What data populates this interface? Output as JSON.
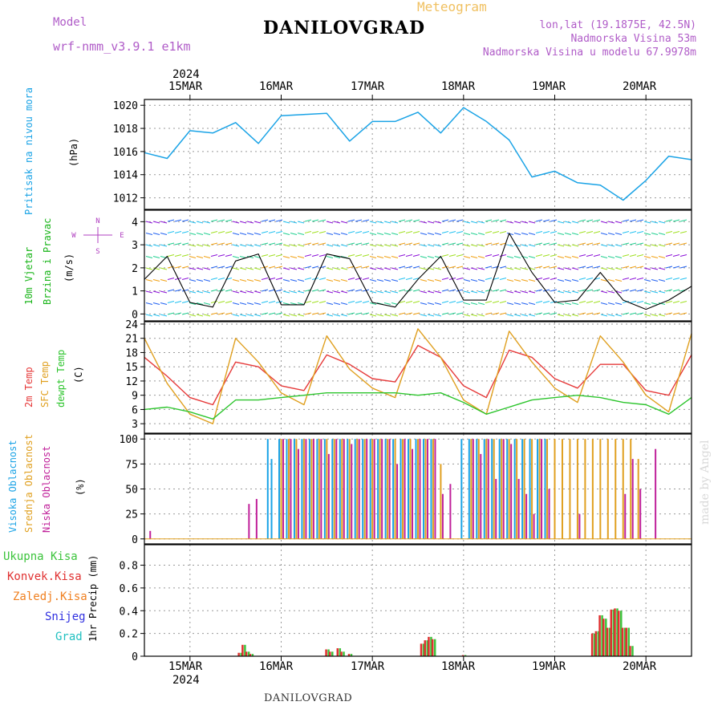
{
  "header": {
    "model_label": "Model",
    "model_name": "wrf-nmm_v3.9.1 e1km",
    "station": "DANILOVGRAD",
    "chart_kind": "Meteogram",
    "coords": "lon,lat (19.1875E, 42.5N)",
    "elevation": "Nadmorska Visina 53m",
    "model_elevation": "Nadmorska Visina u modelu 67.9978m",
    "footer_station": "DANILOVGRAD",
    "watermark": "made by Angel"
  },
  "colors": {
    "pressure": "#1aa3e6",
    "wind_title": "#1ab51a",
    "wind_unit": "#000000",
    "compass": "#b040c0",
    "temp2m": "#e63a3a",
    "sfc": "#e0a020",
    "dewpt": "#2ec52e",
    "cl_high": "#1aa3e6",
    "cl_mid": "#e0a020",
    "cl_low": "#c0209a",
    "precip_total": "#3cc43c",
    "precip_conv": "#e03030",
    "precip_frz": "#f08020",
    "precip_snow": "#3030e0",
    "precip_grad": "#20c0c0",
    "header_purple": "#b05cc8",
    "meteogram": "#f0c060"
  },
  "time_axis": {
    "year": "2024",
    "days": [
      "15MAR",
      "16MAR",
      "17MAR",
      "18MAR",
      "19MAR",
      "20MAR"
    ],
    "start": "2024-03-14T12:00",
    "end": "2024-03-20T12:00"
  },
  "chart_data": [
    {
      "type": "line",
      "panel": "pressure",
      "ylabel": "Pritisak na nivou mora",
      "unit": "(hPa)",
      "ylim": [
        1011,
        1020.5
      ],
      "yticks": [
        "1012",
        "1014",
        "1016",
        "1018",
        "1020"
      ],
      "series": [
        {
          "name": "Pritisak na nivou mora",
          "x": [
            "2024-03-14T12:00",
            "2024-03-14T18:00",
            "2024-03-15T00:00",
            "2024-03-15T06:00",
            "2024-03-15T12:00",
            "2024-03-15T18:00",
            "2024-03-16T00:00",
            "2024-03-16T06:00",
            "2024-03-16T12:00",
            "2024-03-16T18:00",
            "2024-03-17T00:00",
            "2024-03-17T06:00",
            "2024-03-17T12:00",
            "2024-03-17T18:00",
            "2024-03-18T00:00",
            "2024-03-18T06:00",
            "2024-03-18T12:00",
            "2024-03-18T18:00",
            "2024-03-19T00:00",
            "2024-03-19T06:00",
            "2024-03-19T12:00",
            "2024-03-19T18:00",
            "2024-03-20T00:00",
            "2024-03-20T06:00",
            "2024-03-20T12:00"
          ],
          "values": [
            1015.9,
            1015.4,
            1017.8,
            1017.6,
            1018.5,
            1016.7,
            1019.1,
            1019.2,
            1019.3,
            1016.9,
            1018.6,
            1018.6,
            1019.4,
            1017.6,
            1019.8,
            1018.6,
            1017.0,
            1013.8,
            1014.3,
            1013.3,
            1013.1,
            1011.8,
            1013.5,
            1015.6,
            1015.3
          ]
        }
      ]
    },
    {
      "type": "line",
      "panel": "wind",
      "ylabel": "10m Vjetar Brzina i Pravac",
      "unit": "(m/s)",
      "compass": [
        "N",
        "W",
        "E",
        "S"
      ],
      "ylim": [
        -0.3,
        4.5
      ],
      "yticks": [
        "0",
        "1",
        "2",
        "3",
        "4"
      ],
      "series": [
        {
          "name": "Brzina",
          "x": [
            "2024-03-14T12:00",
            "2024-03-14T18:00",
            "2024-03-15T00:00",
            "2024-03-15T06:00",
            "2024-03-15T12:00",
            "2024-03-15T18:00",
            "2024-03-16T00:00",
            "2024-03-16T06:00",
            "2024-03-16T12:00",
            "2024-03-16T18:00",
            "2024-03-17T00:00",
            "2024-03-17T06:00",
            "2024-03-17T12:00",
            "2024-03-17T18:00",
            "2024-03-18T00:00",
            "2024-03-18T06:00",
            "2024-03-18T12:00",
            "2024-03-18T18:00",
            "2024-03-19T00:00",
            "2024-03-19T06:00",
            "2024-03-19T12:00",
            "2024-03-19T18:00",
            "2024-03-20T00:00",
            "2024-03-20T06:00",
            "2024-03-20T12:00"
          ],
          "values": [
            1.5,
            2.5,
            0.5,
            0.3,
            2.3,
            2.6,
            0.4,
            0.4,
            2.6,
            2.4,
            0.5,
            0.3,
            1.5,
            2.5,
            0.6,
            0.6,
            3.5,
            1.8,
            0.5,
            0.6,
            1.8,
            0.6,
            0.2,
            0.6,
            1.2
          ]
        }
      ]
    },
    {
      "type": "line",
      "panel": "temperature",
      "ylabel": "2m Temp / SFC Temp / dewpt Temp",
      "unit": "(C)",
      "ylim": [
        1,
        24.5
      ],
      "yticks": [
        "3",
        "6",
        "9",
        "12",
        "15",
        "18",
        "21",
        "24"
      ],
      "series": [
        {
          "name": "2m Temp",
          "x": [
            "2024-03-14T12:00",
            "2024-03-14T18:00",
            "2024-03-15T00:00",
            "2024-03-15T06:00",
            "2024-03-15T12:00",
            "2024-03-15T18:00",
            "2024-03-16T00:00",
            "2024-03-16T06:00",
            "2024-03-16T12:00",
            "2024-03-16T18:00",
            "2024-03-17T00:00",
            "2024-03-17T06:00",
            "2024-03-17T12:00",
            "2024-03-17T18:00",
            "2024-03-18T00:00",
            "2024-03-18T06:00",
            "2024-03-18T12:00",
            "2024-03-18T18:00",
            "2024-03-19T00:00",
            "2024-03-19T06:00",
            "2024-03-19T12:00",
            "2024-03-19T18:00",
            "2024-03-20T00:00",
            "2024-03-20T06:00",
            "2024-03-20T12:00"
          ],
          "values": [
            17,
            13,
            8.5,
            7,
            16,
            15,
            11,
            10,
            17.5,
            15.5,
            12.5,
            11.8,
            19.5,
            17,
            11,
            8.5,
            18.5,
            17,
            12.5,
            10.5,
            15.5,
            15.5,
            10,
            9,
            17.5
          ]
        },
        {
          "name": "SFC Temp",
          "x": [
            "2024-03-14T12:00",
            "2024-03-14T18:00",
            "2024-03-15T00:00",
            "2024-03-15T06:00",
            "2024-03-15T12:00",
            "2024-03-15T18:00",
            "2024-03-16T00:00",
            "2024-03-16T06:00",
            "2024-03-16T12:00",
            "2024-03-16T18:00",
            "2024-03-17T00:00",
            "2024-03-17T06:00",
            "2024-03-17T12:00",
            "2024-03-17T18:00",
            "2024-03-18T00:00",
            "2024-03-18T06:00",
            "2024-03-18T12:00",
            "2024-03-18T18:00",
            "2024-03-19T00:00",
            "2024-03-19T06:00",
            "2024-03-19T12:00",
            "2024-03-19T18:00",
            "2024-03-20T00:00",
            "2024-03-20T06:00",
            "2024-03-20T12:00"
          ],
          "values": [
            21,
            11.5,
            5,
            3,
            21,
            16,
            9.5,
            7,
            21.5,
            14.5,
            10.5,
            8.5,
            23,
            17,
            8,
            5,
            22.5,
            16,
            10.5,
            7.5,
            21.5,
            16,
            9,
            5.5,
            22
          ]
        },
        {
          "name": "dewpt Temp",
          "x": [
            "2024-03-14T12:00",
            "2024-03-14T18:00",
            "2024-03-15T00:00",
            "2024-03-15T06:00",
            "2024-03-15T12:00",
            "2024-03-15T18:00",
            "2024-03-16T00:00",
            "2024-03-16T06:00",
            "2024-03-16T12:00",
            "2024-03-16T18:00",
            "2024-03-17T00:00",
            "2024-03-17T06:00",
            "2024-03-17T12:00",
            "2024-03-17T18:00",
            "2024-03-18T00:00",
            "2024-03-18T06:00",
            "2024-03-18T12:00",
            "2024-03-18T18:00",
            "2024-03-19T00:00",
            "2024-03-19T06:00",
            "2024-03-19T12:00",
            "2024-03-19T18:00",
            "2024-03-20T00:00",
            "2024-03-20T06:00",
            "2024-03-20T12:00"
          ],
          "values": [
            6,
            6.5,
            5.5,
            4,
            8,
            8,
            8.5,
            9,
            9.5,
            9.5,
            9.5,
            9.5,
            9,
            9.5,
            7.5,
            5,
            6.5,
            8,
            8.5,
            9,
            8.5,
            7.5,
            7,
            5,
            8.5
          ]
        }
      ]
    },
    {
      "type": "bar",
      "panel": "cloud",
      "ylabel": "Visoka Oblacnost / Srednja Oblacnost / Niska Oblacnost",
      "unit": "(%)",
      "ylim": [
        -5,
        105
      ],
      "yticks": [
        "0",
        "25",
        "50",
        "75",
        "100"
      ],
      "x": [
        "2024-03-14T13:00",
        "2024-03-15T15:00",
        "2024-03-15T17:00",
        "2024-03-15T21:00",
        "2024-03-15T22:00",
        "2024-03-16T00:00",
        "2024-03-16T02:00",
        "2024-03-16T04:00",
        "2024-03-16T06:00",
        "2024-03-16T08:00",
        "2024-03-16T10:00",
        "2024-03-16T12:00",
        "2024-03-16T14:00",
        "2024-03-16T16:00",
        "2024-03-16T18:00",
        "2024-03-16T20:00",
        "2024-03-16T22:00",
        "2024-03-17T00:00",
        "2024-03-17T02:00",
        "2024-03-17T04:00",
        "2024-03-17T06:00",
        "2024-03-17T08:00",
        "2024-03-17T10:00",
        "2024-03-17T12:00",
        "2024-03-17T14:00",
        "2024-03-17T16:00",
        "2024-03-17T18:00",
        "2024-03-17T20:00",
        "2024-03-18T00:00",
        "2024-03-18T02:00",
        "2024-03-18T04:00",
        "2024-03-18T06:00",
        "2024-03-18T08:00",
        "2024-03-18T10:00",
        "2024-03-18T12:00",
        "2024-03-18T14:00",
        "2024-03-18T16:00",
        "2024-03-18T18:00",
        "2024-03-18T20:00",
        "2024-03-18T22:00",
        "2024-03-19T00:00",
        "2024-03-19T02:00",
        "2024-03-19T04:00",
        "2024-03-19T06:00",
        "2024-03-19T08:00",
        "2024-03-19T10:00",
        "2024-03-19T12:00",
        "2024-03-19T14:00",
        "2024-03-19T16:00",
        "2024-03-19T18:00",
        "2024-03-19T20:00",
        "2024-03-19T22:00",
        "2024-03-20T02:00"
      ],
      "series": [
        {
          "name": "Visoka Oblacnost",
          "values": [
            0,
            0,
            0,
            100,
            80,
            100,
            100,
            100,
            100,
            100,
            100,
            100,
            100,
            100,
            100,
            100,
            100,
            100,
            100,
            100,
            100,
            100,
            100,
            100,
            100,
            100,
            0,
            0,
            100,
            100,
            100,
            100,
            100,
            100,
            100,
            100,
            100,
            100,
            100,
            100,
            0,
            0,
            0,
            0,
            0,
            0,
            0,
            0,
            0,
            0,
            0,
            0,
            0
          ]
        },
        {
          "name": "Srednja Oblacnost",
          "values": [
            0,
            0,
            0,
            0,
            0,
            100,
            100,
            100,
            100,
            100,
            100,
            100,
            100,
            100,
            100,
            100,
            100,
            100,
            100,
            100,
            100,
            100,
            100,
            100,
            100,
            100,
            75,
            0,
            0,
            100,
            100,
            100,
            100,
            100,
            100,
            100,
            100,
            100,
            100,
            100,
            100,
            100,
            100,
            100,
            100,
            100,
            100,
            100,
            100,
            100,
            100,
            80,
            0
          ]
        },
        {
          "name": "Niska Oblacnost",
          "values": [
            8,
            35,
            40,
            0,
            0,
            100,
            100,
            90,
            100,
            100,
            100,
            85,
            100,
            100,
            95,
            100,
            100,
            100,
            100,
            100,
            75,
            100,
            90,
            100,
            100,
            100,
            45,
            55,
            0,
            100,
            85,
            100,
            60,
            100,
            95,
            60,
            45,
            25,
            100,
            50,
            0,
            0,
            0,
            25,
            0,
            0,
            0,
            0,
            0,
            45,
            80,
            50,
            90
          ]
        }
      ]
    },
    {
      "type": "bar",
      "panel": "precip",
      "ylabel": "1hr Precip",
      "unit": "(mm)",
      "ylim": [
        0,
        0.98
      ],
      "yticks": [
        "0",
        "0.2",
        "0.4",
        "0.6",
        "0.8"
      ],
      "legend": [
        "Ukupna Kisa",
        "Konvek.Kisa",
        "Zaledj.Kisa",
        "Snijeg",
        "Grad"
      ],
      "x": [
        "2024-03-15T13:00",
        "2024-03-15T14:00",
        "2024-03-15T15:00",
        "2024-03-15T16:00",
        "2024-03-16T12:00",
        "2024-03-16T13:00",
        "2024-03-16T15:00",
        "2024-03-16T16:00",
        "2024-03-16T18:00",
        "2024-03-17T13:00",
        "2024-03-17T14:00",
        "2024-03-17T15:00",
        "2024-03-17T16:00",
        "2024-03-18T00:00",
        "2024-03-19T10:00",
        "2024-03-19T11:00",
        "2024-03-19T12:00",
        "2024-03-19T13:00",
        "2024-03-19T14:00",
        "2024-03-19T15:00",
        "2024-03-19T16:00",
        "2024-03-19T17:00",
        "2024-03-19T18:00",
        "2024-03-19T19:00",
        "2024-03-19T20:00"
      ],
      "series": [
        {
          "name": "Ukupna Kisa",
          "values": [
            0.03,
            0.1,
            0.04,
            0.02,
            0.06,
            0.04,
            0.07,
            0.04,
            0.02,
            0.11,
            0.14,
            0.17,
            0.15,
            0.01,
            0.2,
            0.22,
            0.36,
            0.33,
            0.25,
            0.41,
            0.42,
            0.4,
            0.25,
            0.25,
            0.09
          ]
        },
        {
          "name": "Konvek.Kisa",
          "values": [
            0.03,
            0.1,
            0.04,
            0.02,
            0.06,
            0.04,
            0.07,
            0.04,
            0.02,
            0.11,
            0.14,
            0.17,
            0.15,
            0.01,
            0.2,
            0.22,
            0.36,
            0.33,
            0.25,
            0.41,
            0.42,
            0.4,
            0.25,
            0.25,
            0.09
          ]
        }
      ]
    }
  ]
}
